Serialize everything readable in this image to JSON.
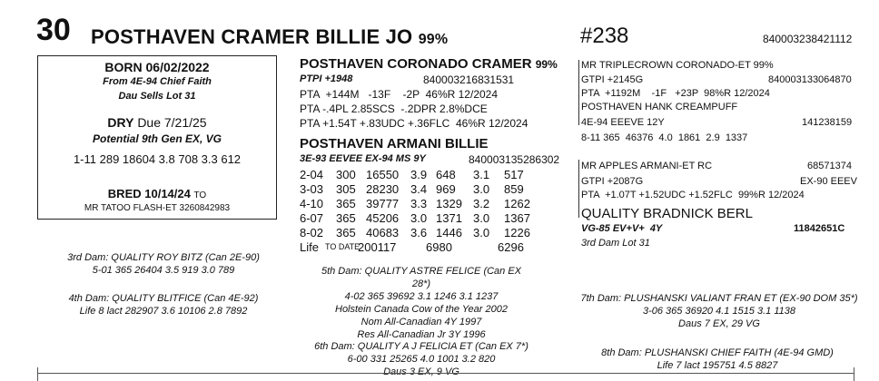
{
  "header": {
    "lot": "30",
    "name": "POSTHAVEN CRAMER BILLIE JO",
    "name_pct": "99%",
    "hash": "#238",
    "reg": "840003238421112"
  },
  "left_box": {
    "born": "BORN  06/02/2022",
    "from": "From 4E-94 Chief Faith",
    "dau_sells": "Dau Sells Lot 31",
    "dry_label": "DRY",
    "dry_due": "Due 7/21/25",
    "potential": "Potential 9th Gen EX, VG",
    "record": "1-11 289 18604  3.8 708  3.3 612",
    "bred": "BRED  10/14/24",
    "to": "TO",
    "sire_bred": "MR TATOO FLASH-ET 3260842983"
  },
  "sire": {
    "name": "POSTHAVEN CORONADO CRAMER",
    "pct": "99%",
    "ptpi": "PTPI +1948",
    "reg": "840003216831531",
    "line1": "PTA  +144M   -13F    -2P  46%R 12/2024",
    "line2": "PTA -.4PL 2.85SCS  -.2DPR 2.8%DCE",
    "line3": "PTA +1.54T +.83UDC +.36FLC  46%R 12/2024"
  },
  "dam": {
    "name": "POSTHAVEN ARMANI BILLIE",
    "class": "3E-93 EEVEE EX-94 MS 9Y",
    "reg": "840003135286302",
    "lactations": [
      [
        "2-04",
        "300",
        "16550",
        "3.9",
        "648",
        "3.1",
        "517"
      ],
      [
        "3-03",
        "305",
        "28230",
        "3.4",
        "969",
        "3.0",
        "859"
      ],
      [
        "4-10",
        "365",
        "39777",
        "3.3",
        "1329",
        "3.2",
        "1262"
      ],
      [
        "6-07",
        "365",
        "45206",
        "3.0",
        "1371",
        "3.0",
        "1367"
      ],
      [
        "8-02",
        "365",
        "40683",
        "3.6",
        "1446",
        "3.0",
        "1226"
      ]
    ],
    "life_label": "Life",
    "life_to_date": "TO DATE",
    "life_milk": "200117",
    "life_fat": "6980",
    "life_prot": "6296"
  },
  "sire_sire": {
    "name": "MR TRIPLECROWN CORONADO-ET 99%",
    "gtpi": "GTPI +2145G",
    "reg": "840003133064870",
    "pta": "PTA  +1192M    -1F   +23P  98%R 12/2024"
  },
  "sire_dam": {
    "name": "POSTHAVEN HANK CREAMPUFF",
    "class": "4E-94 EEEVE 12Y",
    "reg": "141238159",
    "record": "8-11 365  46376  4.0  1861  2.9  1337"
  },
  "dam_sire": {
    "name": "MR APPLES ARMANI-ET  RC",
    "reg": "68571374",
    "gtpi": "GTPI +2087G",
    "class": "EX-90 EEEV",
    "pta": "PTA  +1.07T +1.52UDC +1.52FLC  99%R 12/2024"
  },
  "dam_dam": {
    "name": "QUALITY BRADNICK BERL",
    "class": "VG-85 EV+V+  4Y",
    "reg": "11842651C",
    "note": "3rd Dam Lot 31"
  },
  "pedigree": {
    "dam3": [
      "3rd Dam: QUALITY ROY BITZ  (Can 2E-90)",
      "5-01 365 26404 3.5 919  3.0  789"
    ],
    "dam4": [
      "4th Dam: QUALITY BLITFICE  (Can 4E-92)",
      "Life 8 lact  282907  3.6  10106 2.8 7892"
    ],
    "dam5": [
      "5th Dam: QUALITY ASTRE FELICE  (Can EX 28*)",
      "4-02 365  39692  3.1  1246  3.1  1237",
      "Holstein Canada Cow of the Year 2002",
      "Nom All-Canadian 4Y 1997",
      "Res All-Canadian Jr 3Y 1996"
    ],
    "dam6": [
      "6th Dam: QUALITY A J FELICIA ET  (Can EX 7*)",
      "6-00 331  25265  4.0  1001 3.2 820",
      "Daus 3 EX, 9 VG"
    ],
    "dam7": [
      "7th Dam: PLUSHANSKI VALIANT FRAN ET  (EX-90 DOM 35*)",
      "3-06 365 36920  4.1 1515 3.1 1138",
      "Daus 7 EX, 29 VG"
    ],
    "dam8": [
      "8th Dam: PLUSHANSKI CHIEF FAITH  (4E-94 GMD)",
      "Life 7 lact 195751 4.5  8827"
    ]
  }
}
